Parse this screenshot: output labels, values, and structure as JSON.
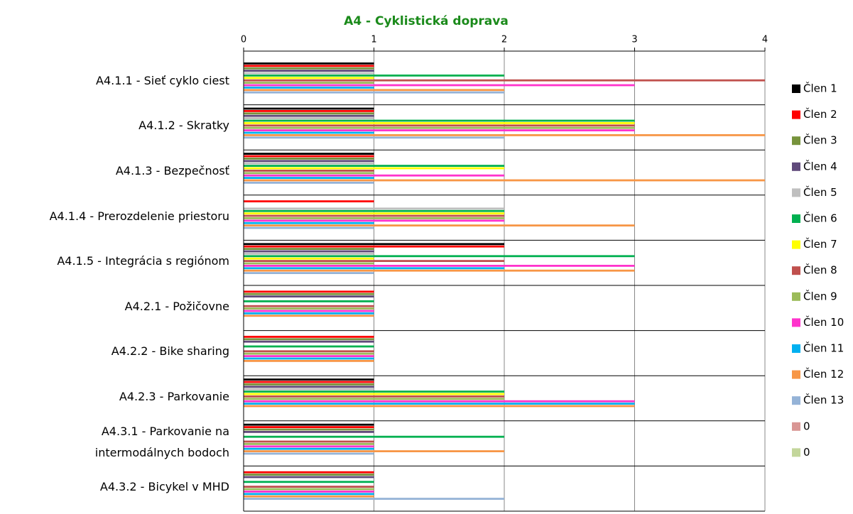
{
  "chart_data": {
    "type": "bar",
    "orientation": "horizontal",
    "title": "A4 - Cyklistická  doprava",
    "categories": [
      "A4.1.1  - Sieť cyklo ciest",
      "A4.1.2  - Skratky",
      "A4.1.3  - Bezpečnosť",
      "A4.1.4  - Prerozdelenie priestoru",
      "A4.1.5  - Integrácia s regiónom",
      "A4.2.1  - Požičovne",
      "A4.2.2  - Bike sharing",
      "A4.2.3  - Parkovanie",
      "A4.3.1  - Parkovanie na\nintermodálnych bodoch",
      "A4.3.2  - Bicykel v MHD"
    ],
    "series": [
      {
        "name": "Člen 1",
        "color": "#000000",
        "values": [
          1,
          1,
          1,
          0,
          2,
          0,
          0,
          1,
          1,
          0
        ]
      },
      {
        "name": "Člen 2",
        "color": "#ff0000",
        "values": [
          1,
          1,
          1,
          1,
          2,
          1,
          1,
          1,
          1,
          1
        ]
      },
      {
        "name": "Člen 3",
        "color": "#77933c",
        "values": [
          1,
          1,
          1,
          0,
          1,
          1,
          1,
          1,
          1,
          1
        ]
      },
      {
        "name": "Člen 4",
        "color": "#604a7b",
        "values": [
          1,
          1,
          1,
          0,
          1,
          1,
          1,
          1,
          1,
          1
        ]
      },
      {
        "name": "Člen 5",
        "color": "#bfbfbf",
        "values": [
          1,
          1,
          1,
          2,
          1,
          0,
          0,
          1,
          0,
          0
        ]
      },
      {
        "name": "Člen 6",
        "color": "#00b050",
        "values": [
          2,
          3,
          2,
          2,
          3,
          1,
          1,
          2,
          2,
          1
        ]
      },
      {
        "name": "Člen 7",
        "color": "#ffff00",
        "values": [
          1,
          3,
          2,
          2,
          1,
          0,
          0,
          2,
          0,
          0
        ]
      },
      {
        "name": "Člen 8",
        "color": "#c0504d",
        "values": [
          4,
          3,
          1,
          2,
          2,
          1,
          1,
          2,
          1,
          1
        ]
      },
      {
        "name": "Člen 9",
        "color": "#9bbb59",
        "values": [
          1,
          3,
          1,
          2,
          1,
          1,
          1,
          2,
          1,
          1
        ]
      },
      {
        "name": "Člen 10",
        "color": "#ff33cc",
        "values": [
          3,
          3,
          2,
          2,
          3,
          1,
          1,
          3,
          1,
          1
        ]
      },
      {
        "name": "Člen 11",
        "color": "#00b0f0",
        "values": [
          1,
          1,
          1,
          1,
          2,
          1,
          1,
          3,
          1,
          1
        ]
      },
      {
        "name": "Člen 12",
        "color": "#f79646",
        "values": [
          2,
          4,
          4,
          3,
          3,
          1,
          1,
          3,
          2,
          1
        ]
      },
      {
        "name": "Člen 13",
        "color": "#95b3d7",
        "values": [
          2,
          2,
          1,
          1,
          1,
          0,
          0,
          0,
          1,
          2
        ]
      },
      {
        "name": "0",
        "color": "#d99694",
        "values": [
          0,
          0,
          0,
          0,
          0,
          0,
          0,
          0,
          0,
          0
        ]
      },
      {
        "name": "0",
        "color": "#c3d69b",
        "values": [
          0,
          0,
          0,
          0,
          0,
          0,
          0,
          0,
          0,
          0
        ]
      }
    ],
    "xlim": [
      0,
      4
    ],
    "xticks": [
      0,
      1,
      2,
      3,
      4
    ],
    "grid": true,
    "legend": "right"
  }
}
